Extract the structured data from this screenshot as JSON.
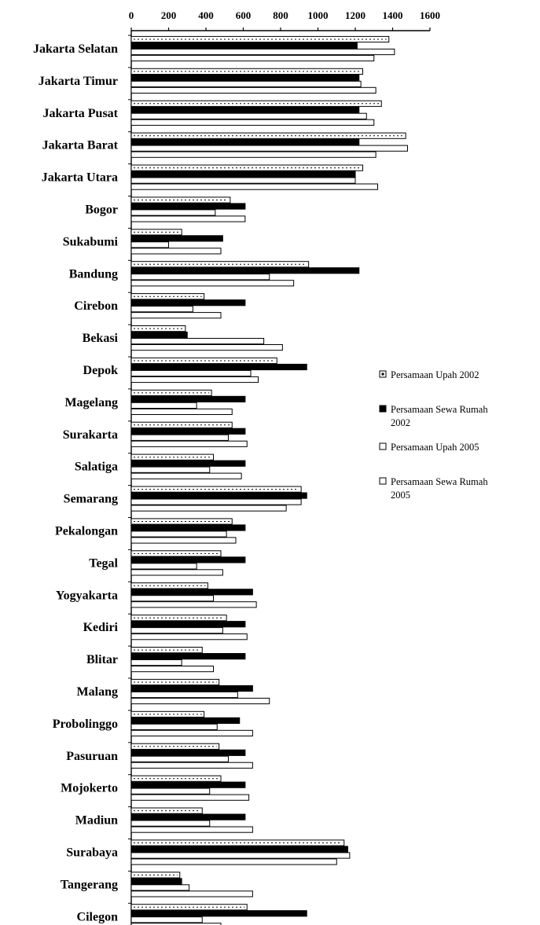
{
  "chart_data": {
    "type": "bar",
    "orientation": "horizontal",
    "title": "",
    "xlabel": "",
    "ylabel": "",
    "xlim": [
      0,
      1600
    ],
    "x_ticks": [
      "0",
      "200",
      "400",
      "600",
      "800",
      "1000",
      "1200",
      "1400",
      "1600"
    ],
    "x_axis_position": "top",
    "grid": false,
    "legend_position": "right",
    "categories": [
      "Jakarta Selatan",
      "Jakarta Timur",
      "Jakarta Pusat",
      "Jakarta Barat",
      "Jakarta Utara",
      "Bogor",
      "Sukabumi",
      "Bandung",
      "Cirebon",
      "Bekasi",
      "Depok",
      "Magelang",
      "Surakarta",
      "Salatiga",
      "Semarang",
      "Pekalongan",
      "Tegal",
      "Yogyakarta",
      "Kediri",
      "Blitar",
      "Malang",
      "Probolinggo",
      "Pasuruan",
      "Mojokerto",
      "Madiun",
      "Surabaya",
      "Tangerang",
      "Cilegon"
    ],
    "series": [
      {
        "name": "Persamaan Upah 2002",
        "fill": "#ffffff",
        "values": [
          1380,
          1240,
          1340,
          1470,
          1240,
          530,
          270,
          950,
          390,
          290,
          780,
          430,
          540,
          440,
          910,
          540,
          480,
          410,
          510,
          380,
          470,
          390,
          470,
          480,
          380,
          1140,
          260,
          620
        ]
      },
      {
        "name": "Persamaan  Sewa Rumah 2002",
        "fill": "#000000",
        "values": [
          1210,
          1220,
          1220,
          1220,
          1200,
          610,
          490,
          1220,
          610,
          300,
          940,
          610,
          610,
          610,
          940,
          610,
          610,
          650,
          610,
          610,
          650,
          580,
          610,
          610,
          610,
          1160,
          270,
          940
        ]
      },
      {
        "name": "Persamaan Upah 2005",
        "fill": "#ffffff",
        "values": [
          1410,
          1230,
          1260,
          1480,
          1200,
          450,
          200,
          740,
          330,
          710,
          640,
          350,
          520,
          420,
          910,
          510,
          350,
          440,
          490,
          270,
          570,
          460,
          520,
          420,
          420,
          1170,
          310,
          380
        ]
      },
      {
        "name": "Persamaan  Sewa Rumah 2005",
        "fill": "#ffffff",
        "values": [
          1300,
          1310,
          1300,
          1310,
          1320,
          610,
          480,
          870,
          480,
          810,
          680,
          540,
          620,
          590,
          830,
          560,
          490,
          670,
          620,
          440,
          740,
          650,
          650,
          630,
          650,
          1100,
          650,
          480
        ]
      }
    ]
  }
}
